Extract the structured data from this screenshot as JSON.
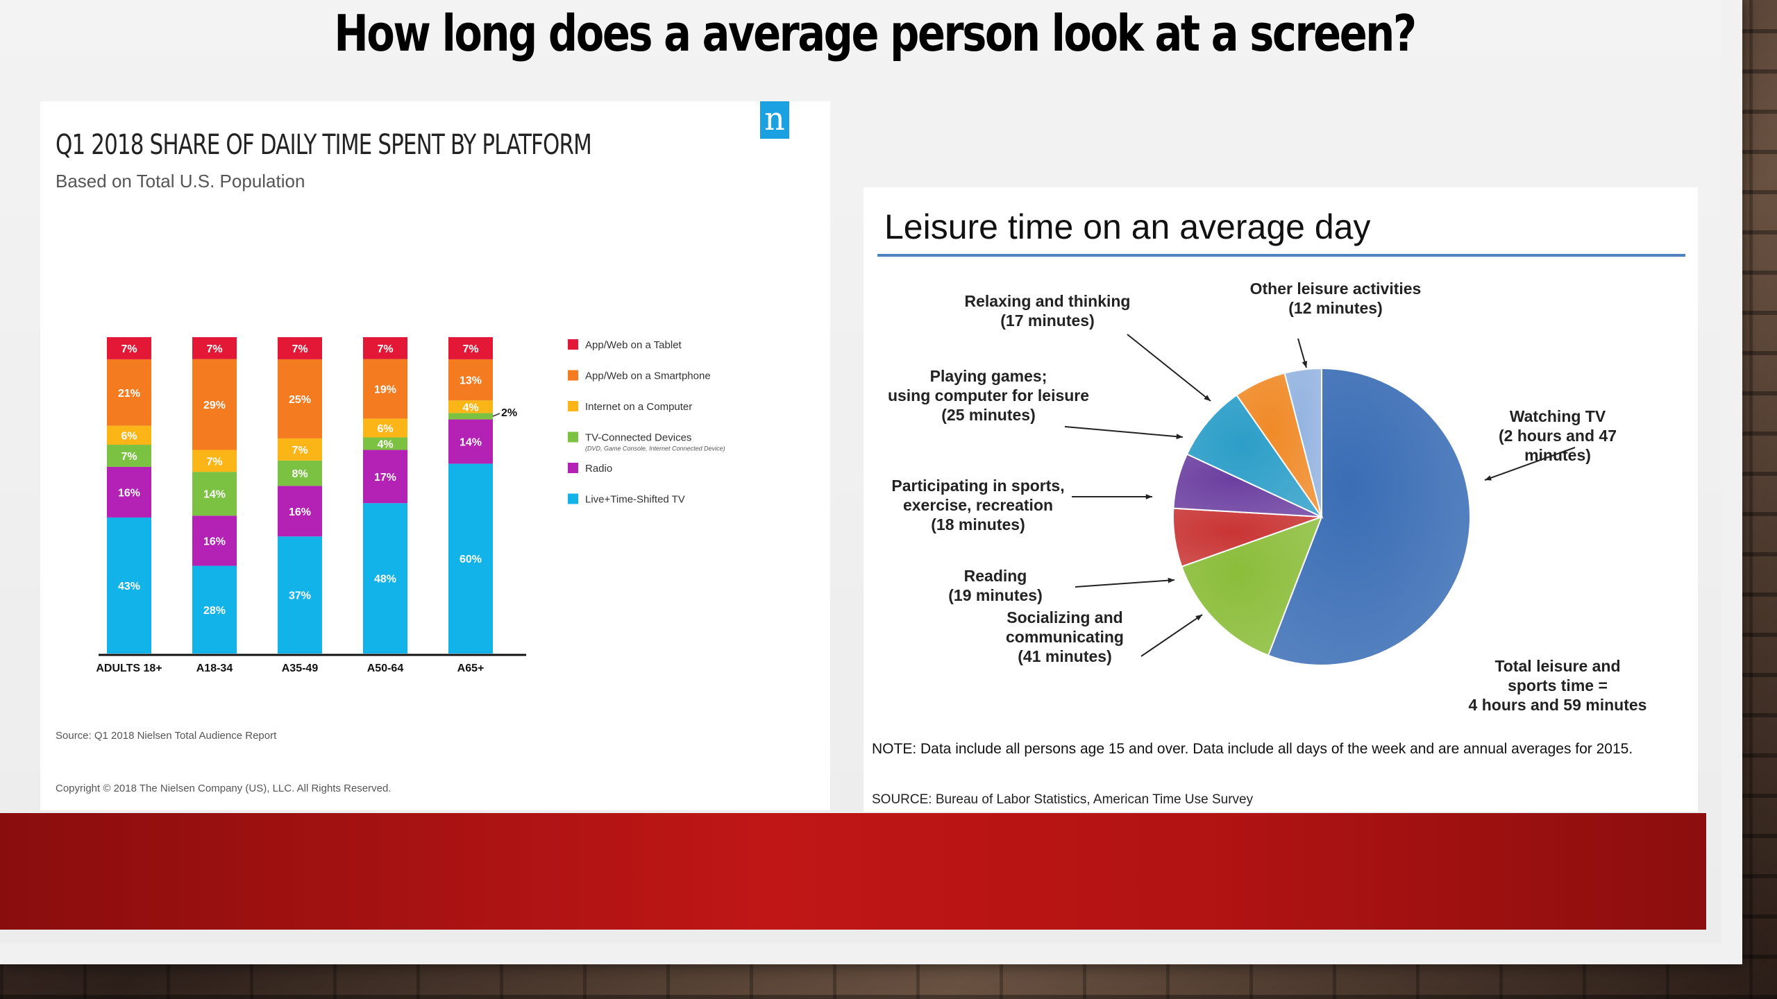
{
  "slide": {
    "title": "How long does a average person look at a screen?"
  },
  "nielsen": {
    "logo": "n",
    "title": "Q1 2018 SHARE OF DAILY TIME SPENT BY PLATFORM",
    "subtitle": "Based on Total U.S. Population",
    "source": "Source: Q1 2018 Nielsen Total Audience Report",
    "copyright": "Copyright © 2018 The Nielsen Company (US), LLC. All Rights Reserved."
  },
  "bls": {
    "title": "Leisure time on an average day",
    "note": "NOTE: Data include all persons age 15 and over. Data include all days of the week and are annual averages for 2015.",
    "source": "SOURCE: Bureau of Labor Statistics, American Time Use Survey",
    "total_label": [
      "Total leisure and",
      "sports time =",
      "4 hours and 59 minutes"
    ]
  },
  "chart_data": [
    {
      "type": "bar",
      "stacked": true,
      "title": "Q1 2018 SHARE OF DAILY TIME SPENT BY PLATFORM",
      "subtitle": "Based on Total U.S. Population",
      "categories": [
        "ADULTS 18+",
        "A18-34",
        "A35-49",
        "A50-64",
        "A65+"
      ],
      "series": [
        {
          "name": "Live+Time-Shifted TV",
          "color": "#12b3e8",
          "values": [
            43,
            28,
            37,
            48,
            60
          ],
          "labels": [
            "43%",
            "28%",
            "37%",
            "48%",
            "60%"
          ]
        },
        {
          "name": "Radio",
          "color": "#b321b5",
          "values": [
            16,
            16,
            16,
            17,
            14
          ],
          "labels": [
            "16%",
            "16%",
            "16%",
            "17%",
            "14%"
          ]
        },
        {
          "name": "TV-Connected Devices",
          "note": "(DVD, Game Console, Internet Connected Device)",
          "color": "#7cc242",
          "values": [
            7,
            14,
            8,
            4,
            2
          ],
          "labels": [
            "7%",
            "14%",
            "8%",
            "4%",
            "2%"
          ]
        },
        {
          "name": "Internet on a Computer",
          "color": "#fbb516",
          "values": [
            6,
            7,
            7,
            6,
            4
          ],
          "labels": [
            "6%",
            "7%",
            "7%",
            "6%",
            "4%"
          ]
        },
        {
          "name": "App/Web on a Smartphone",
          "color": "#f47b20",
          "values": [
            21,
            29,
            25,
            19,
            13
          ],
          "labels": [
            "21%",
            "29%",
            "25%",
            "19%",
            "13%"
          ]
        },
        {
          "name": "App/Web on a Tablet",
          "color": "#e31837",
          "values": [
            7,
            7,
            7,
            7,
            7
          ],
          "labels": [
            "7%",
            "7%",
            "7%",
            "7%",
            "7%"
          ]
        }
      ],
      "legend_order": [
        "App/Web on a Tablet",
        "App/Web on a Smartphone",
        "Internet on a Computer",
        "TV-Connected Devices",
        "Radio",
        "Live+Time-Shifted TV"
      ],
      "legend_position": "right",
      "external_label": "2%"
    },
    {
      "type": "pie",
      "title": "Leisure time on an average day",
      "slices": [
        {
          "label": [
            "Watching TV",
            "(2 hours and 47",
            "minutes)"
          ],
          "value": 167,
          "color": "#3a6db5"
        },
        {
          "label": [
            "Socializing and",
            "communicating",
            "(41 minutes)"
          ],
          "value": 41,
          "color": "#8bbd3a"
        },
        {
          "label": [
            "Reading",
            "(19 minutes)"
          ],
          "value": 19,
          "color": "#c93434"
        },
        {
          "label": [
            "Participating in sports,",
            "exercise, recreation",
            "(18 minutes)"
          ],
          "value": 18,
          "color": "#6b3fa0"
        },
        {
          "label": [
            "Playing games;",
            "using computer for leisure",
            "(25 minutes)"
          ],
          "value": 25,
          "color": "#2c9ec8"
        },
        {
          "label": [
            "Relaxing and thinking",
            "(17 minutes)"
          ],
          "value": 17,
          "color": "#f08a28"
        },
        {
          "label": [
            "Other leisure activities",
            "(12 minutes)"
          ],
          "value": 12,
          "color": "#93b3e0"
        }
      ]
    }
  ]
}
